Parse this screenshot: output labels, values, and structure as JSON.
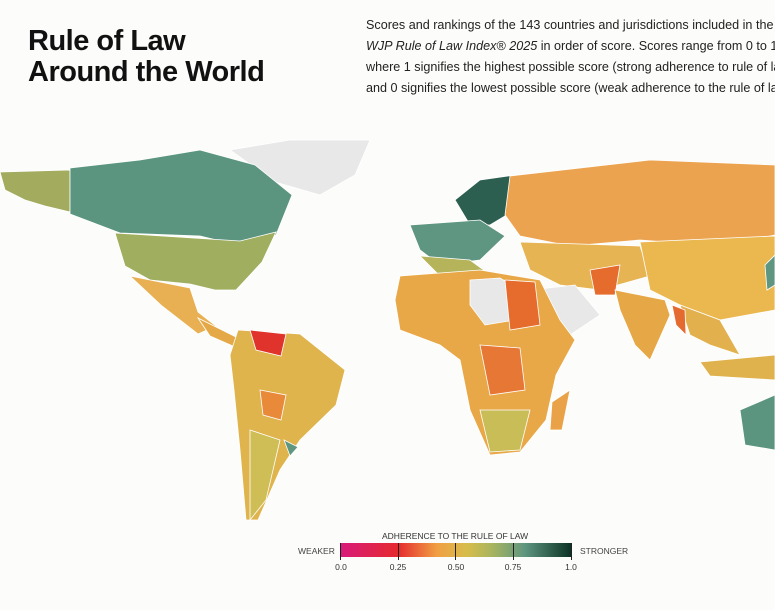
{
  "header": {
    "title_line1": "Rule of Law",
    "title_line2": "Around the World",
    "description": {
      "line1": "Scores and rankings of the 143 countries and jurisdictions included in the",
      "line2_italic": "WJP Rule of Law Index® 2025",
      "line2_rest": " in order of score. Scores range from 0 to 1,",
      "line3": "where 1 signifies the highest possible score (strong adherence to rule of la",
      "line4": "and 0 signifies the lowest possible score (weak adherence to the rule of la"
    }
  },
  "legend": {
    "title": "ADHERENCE TO THE RULE OF LAW",
    "weaker": "WEAKER",
    "stronger": "STRONGER",
    "ticks": [
      "0.0",
      "0.25",
      "0.50",
      "0.75",
      "1.0"
    ],
    "colors": {
      "0.0": "#d81b7b",
      "0.25": "#e52a2e",
      "0.50": "#d6bd4b",
      "0.75": "#5e9680",
      "1.0": "#0c3326",
      "no_data": "#e8e8e8"
    }
  }
}
